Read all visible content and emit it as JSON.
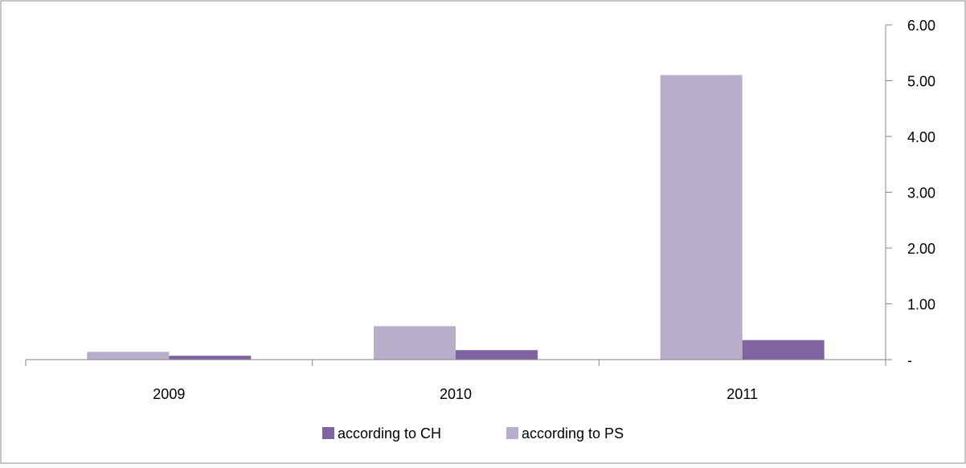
{
  "chart_data": {
    "type": "bar",
    "categories": [
      "2009",
      "2010",
      "2011"
    ],
    "series": [
      {
        "name": "according to CH",
        "values": [
          0.07,
          0.17,
          0.35
        ],
        "color": "#8064A2"
      },
      {
        "name": "according to PS",
        "values": [
          0.14,
          0.6,
          5.1
        ],
        "color": "#B8AECB"
      }
    ],
    "bar_order": [
      "according to PS",
      "according to CH"
    ],
    "ylim": [
      0,
      6
    ],
    "y_ticks": [
      {
        "value": 0,
        "label": "-"
      },
      {
        "value": 1,
        "label": "1.00"
      },
      {
        "value": 2,
        "label": "2.00"
      },
      {
        "value": 3,
        "label": "3.00"
      },
      {
        "value": 4,
        "label": "4.00"
      },
      {
        "value": 5,
        "label": "5.00"
      },
      {
        "value": 6,
        "label": "6.00"
      }
    ],
    "y_axis_position": "right",
    "grid": false,
    "legend_position": "bottom",
    "title": "",
    "xlabel": "",
    "ylabel": ""
  }
}
